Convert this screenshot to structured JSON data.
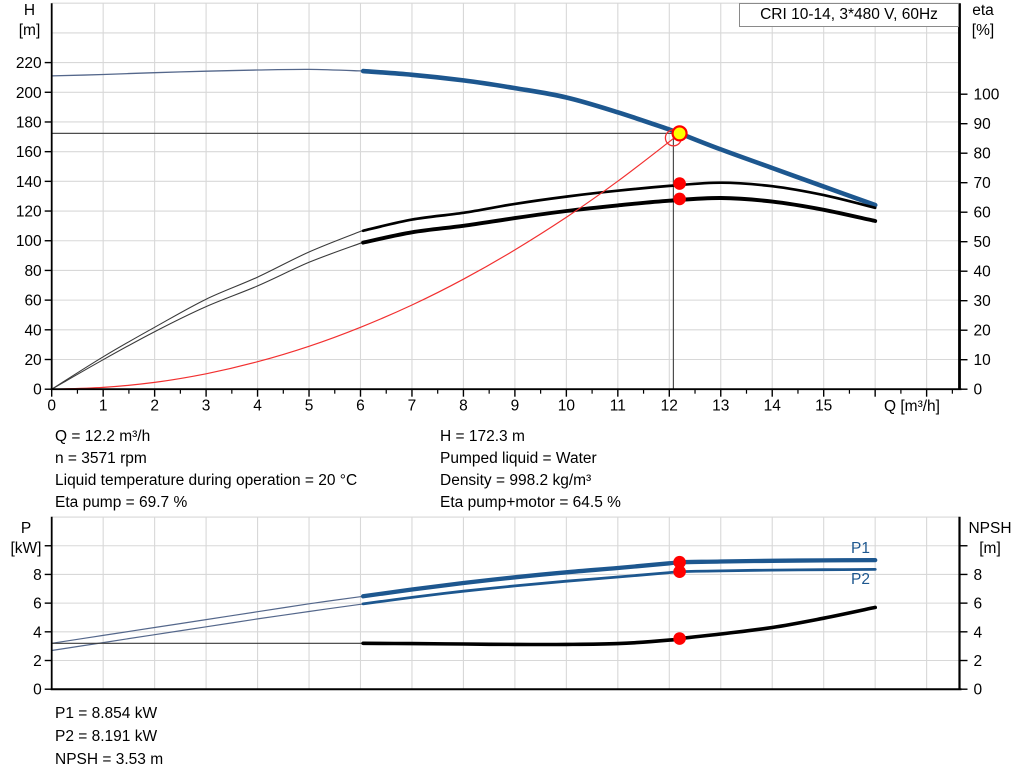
{
  "title_box": {
    "text": "CRI 10-14, 3*480 V, 60Hz"
  },
  "axis_labels": {
    "h": [
      "H",
      "[m]"
    ],
    "eta": [
      "eta",
      "[%]"
    ],
    "q": "Q [m³/h]",
    "p": [
      "P",
      "[kW]"
    ],
    "npsh": [
      "NPSH",
      "[m]"
    ]
  },
  "series_labels": {
    "p1": "P1",
    "p2": "P2"
  },
  "info": {
    "top_left": [
      "Q = 12.2 m³/h",
      "n = 3571 rpm",
      "Liquid temperature during operation = 20 °C",
      "Eta pump = 69.7 %"
    ],
    "top_right": [
      "H = 172.3 m",
      "Pumped liquid = Water",
      "Density = 998.2 kg/m³",
      "Eta pump+motor = 64.5 %"
    ],
    "bottom": [
      "P1 = 8.854 kW",
      "P2 = 8.191 kW",
      "NPSH = 3.53 m"
    ]
  },
  "colors": {
    "curve_blue": "#1d578f",
    "thin_blue": "#54678b",
    "black": "#000000",
    "thin_black": "#3a3a3a",
    "red": "#f23030",
    "marker_red": "#ff0000",
    "duty_yellow": "#ffff00",
    "grid": "#d8d8d8",
    "crosshair": "#4d4d4d",
    "axis": "#000000",
    "label_blue": "#1d578f"
  },
  "operating_point": {
    "q": 12.2,
    "h": 172.3,
    "eta_pump": 69.7,
    "eta_total": 64.5,
    "p1": 8.854,
    "p2": 8.191,
    "npsh": 3.53
  },
  "chart_data": [
    {
      "type": "line",
      "name": "pump-performance-curve",
      "x_axis": {
        "label": "Q [m³/h]",
        "min": 0,
        "max": 17.64,
        "minor_step": 0.5,
        "tick_values": [
          0,
          1,
          2,
          3,
          4,
          5,
          6,
          7,
          8,
          9,
          10,
          11,
          12,
          13,
          14,
          15,
          16,
          17
        ],
        "tick_labels": [
          "0",
          "1",
          "2",
          "3",
          "4",
          "5",
          "6",
          "7",
          "8",
          "9",
          "10",
          "11",
          "12",
          "13",
          "14",
          "15",
          "",
          ""
        ]
      },
      "y_left": {
        "label": "H [m]",
        "min": 0,
        "max": 260,
        "tick_values": [
          0,
          20,
          40,
          60,
          80,
          100,
          120,
          140,
          160,
          180,
          200,
          220
        ],
        "tick_labels": [
          "0",
          "20",
          "40",
          "60",
          "80",
          "100",
          "120",
          "140",
          "160",
          "180",
          "200",
          "220"
        ]
      },
      "y_right": {
        "label": "eta [%]",
        "min": 0,
        "max": 130,
        "tick_values": [
          0,
          10,
          20,
          30,
          40,
          50,
          60,
          70,
          80,
          90,
          100
        ],
        "tick_labels": [
          "0",
          "10",
          "20",
          "30",
          "40",
          "50",
          "60",
          "70",
          "80",
          "90",
          "100"
        ]
      },
      "grid": {
        "vertical": [
          1,
          2,
          3,
          4,
          5,
          6,
          7,
          8,
          9,
          10,
          11,
          12,
          13,
          14,
          15,
          16,
          17
        ],
        "horizontal": [
          20,
          40,
          60,
          80,
          100,
          120,
          140,
          160,
          180,
          200,
          220,
          240,
          260
        ]
      },
      "crosshair": {
        "h_value": 172.3,
        "q_from": 0,
        "q_to": 12.08,
        "v_q": 12.08
      },
      "series": [
        {
          "name": "head",
          "axis": "left",
          "color": "curve_blue",
          "thin_color": "thin_blue",
          "w_thin": 1.3,
          "w_thick": 4.6,
          "thick_from": 6.05,
          "points": [
            [
              0,
              211
            ],
            [
              1,
              212
            ],
            [
              2,
              213.2
            ],
            [
              3,
              214.2
            ],
            [
              4,
              215
            ],
            [
              5,
              215.4
            ],
            [
              6,
              214.4
            ],
            [
              7,
              211.8
            ],
            [
              8,
              208
            ],
            [
              9,
              202.8
            ],
            [
              10,
              196.5
            ],
            [
              11,
              186.5
            ],
            [
              12,
              174.9
            ],
            [
              12.2,
              172.3
            ],
            [
              13,
              161.5
            ],
            [
              14,
              149
            ],
            [
              15,
              136.5
            ],
            [
              16,
              124
            ]
          ]
        },
        {
          "name": "eta-pump",
          "axis": "right",
          "color": "black",
          "thin_color": "thin_black",
          "w_thin": 1.1,
          "w_thick": 2.7,
          "thick_from": 6.05,
          "points": [
            [
              0,
              0
            ],
            [
              1,
              11
            ],
            [
              2,
              21
            ],
            [
              3,
              30.5
            ],
            [
              4,
              38
            ],
            [
              5,
              46.5
            ],
            [
              6,
              53.5
            ],
            [
              7,
              57.5
            ],
            [
              8,
              59.8
            ],
            [
              9,
              62.8
            ],
            [
              10,
              65.3
            ],
            [
              11,
              67.3
            ],
            [
              12,
              68.9
            ],
            [
              13,
              70
            ],
            [
              14,
              68.8
            ],
            [
              15,
              65.8
            ],
            [
              16,
              61.5
            ]
          ]
        },
        {
          "name": "eta-pump-motor",
          "axis": "right",
          "color": "black",
          "thin_color": "thin_black",
          "w_thin": 1.1,
          "w_thick": 3.9,
          "thick_from": 6.05,
          "points": [
            [
              0,
              0
            ],
            [
              1,
              10
            ],
            [
              2,
              19.5
            ],
            [
              3,
              28
            ],
            [
              4,
              35
            ],
            [
              5,
              43
            ],
            [
              6,
              49.5
            ],
            [
              7,
              53.2
            ],
            [
              8,
              55.4
            ],
            [
              9,
              58
            ],
            [
              10,
              60.4
            ],
            [
              11,
              62.3
            ],
            [
              12,
              63.9
            ],
            [
              13,
              64.8
            ],
            [
              14,
              63.6
            ],
            [
              15,
              60.8
            ],
            [
              16,
              57
            ]
          ]
        },
        {
          "name": "system-curve",
          "axis": "left",
          "color": "red",
          "w_thin": 1.2,
          "points": [
            [
              0,
              0
            ],
            [
              1,
              1.2
            ],
            [
              2,
              4.6
            ],
            [
              3,
              10.4
            ],
            [
              4,
              18.5
            ],
            [
              5,
              28.9
            ],
            [
              6,
              41.7
            ],
            [
              7,
              56.7
            ],
            [
              8,
              74.1
            ],
            [
              9,
              93.8
            ],
            [
              10,
              115.8
            ],
            [
              11,
              140.1
            ],
            [
              12,
              166.7
            ],
            [
              12.2,
              172.3
            ]
          ]
        }
      ],
      "markers": [
        {
          "type": "ring",
          "axis": "left",
          "q": 12.08,
          "value": 169.3
        },
        {
          "type": "duty",
          "axis": "left",
          "q": 12.2,
          "value": 172.3
        },
        {
          "type": "dot",
          "axis": "right",
          "q": 12.2,
          "value": 69.7
        },
        {
          "type": "dot",
          "axis": "right",
          "q": 12.2,
          "value": 64.5
        }
      ]
    },
    {
      "type": "line",
      "name": "power-npsh-curve",
      "x_axis": {
        "label": "",
        "min": 0,
        "max": 17.64,
        "minor_step": 0,
        "tick_values": [],
        "tick_labels": []
      },
      "y_left": {
        "label": "P [kW]",
        "min": 0,
        "max": 12,
        "tick_values": [
          0,
          2,
          4,
          6,
          8,
          10
        ],
        "tick_labels": [
          "0",
          "2",
          "4",
          "6",
          "8",
          ""
        ]
      },
      "y_right": {
        "label": "NPSH [m]",
        "min": 0,
        "max": 12,
        "tick_values": [
          0,
          2,
          4,
          6,
          8,
          10
        ],
        "tick_labels": [
          "0",
          "2",
          "4",
          "6",
          "8",
          ""
        ]
      },
      "grid": {
        "vertical": [
          1,
          2,
          3,
          4,
          5,
          6,
          7,
          8,
          9,
          10,
          11,
          12,
          13,
          14,
          15,
          16,
          17
        ],
        "horizontal": [
          2,
          4,
          6,
          8,
          10,
          12
        ]
      },
      "crosshair": null,
      "series": [
        {
          "name": "p1",
          "axis": "left",
          "color": "curve_blue",
          "thin_color": "thin_blue",
          "w_thin": 1.2,
          "w_thick": 4.3,
          "thick_from": 6.05,
          "points": [
            [
              0,
              3.2
            ],
            [
              1,
              3.75
            ],
            [
              2,
              4.3
            ],
            [
              3,
              4.85
            ],
            [
              4,
              5.4
            ],
            [
              5,
              5.95
            ],
            [
              6,
              6.45
            ],
            [
              7,
              6.95
            ],
            [
              8,
              7.4
            ],
            [
              9,
              7.8
            ],
            [
              10,
              8.15
            ],
            [
              11,
              8.45
            ],
            [
              12,
              8.78
            ],
            [
              12.2,
              8.854
            ],
            [
              13,
              8.9
            ],
            [
              14,
              8.95
            ],
            [
              15,
              8.98
            ],
            [
              16,
              9.0
            ]
          ]
        },
        {
          "name": "p2",
          "axis": "left",
          "color": "curve_blue",
          "thin_color": "thin_blue",
          "w_thin": 1.2,
          "w_thick": 2.8,
          "thick_from": 6.05,
          "points": [
            [
              0,
              2.7
            ],
            [
              1,
              3.25
            ],
            [
              2,
              3.8
            ],
            [
              3,
              4.35
            ],
            [
              4,
              4.9
            ],
            [
              5,
              5.42
            ],
            [
              6,
              5.92
            ],
            [
              7,
              6.4
            ],
            [
              8,
              6.83
            ],
            [
              9,
              7.2
            ],
            [
              10,
              7.53
            ],
            [
              11,
              7.82
            ],
            [
              12,
              8.13
            ],
            [
              12.2,
              8.191
            ],
            [
              13,
              8.25
            ],
            [
              14,
              8.3
            ],
            [
              15,
              8.33
            ],
            [
              16,
              8.35
            ]
          ]
        },
        {
          "name": "npsh",
          "axis": "right",
          "color": "black",
          "thin_color": "thin_black",
          "w_thin": 1.2,
          "w_thick": 3.6,
          "thick_from": 6.05,
          "points": [
            [
              0,
              3.2
            ],
            [
              1,
              3.2
            ],
            [
              2,
              3.2
            ],
            [
              3,
              3.2
            ],
            [
              4,
              3.2
            ],
            [
              5,
              3.2
            ],
            [
              6,
              3.2
            ],
            [
              7,
              3.18
            ],
            [
              8,
              3.15
            ],
            [
              9,
              3.12
            ],
            [
              10,
              3.12
            ],
            [
              11,
              3.18
            ],
            [
              12,
              3.42
            ],
            [
              12.2,
              3.53
            ],
            [
              13,
              3.85
            ],
            [
              14,
              4.3
            ],
            [
              15,
              4.95
            ],
            [
              16,
              5.7
            ]
          ]
        }
      ],
      "markers": [
        {
          "type": "dot",
          "axis": "left",
          "q": 12.2,
          "value": 8.854
        },
        {
          "type": "dot",
          "axis": "left",
          "q": 12.2,
          "value": 8.191
        },
        {
          "type": "dot",
          "axis": "right",
          "q": 12.2,
          "value": 3.53
        }
      ]
    }
  ]
}
